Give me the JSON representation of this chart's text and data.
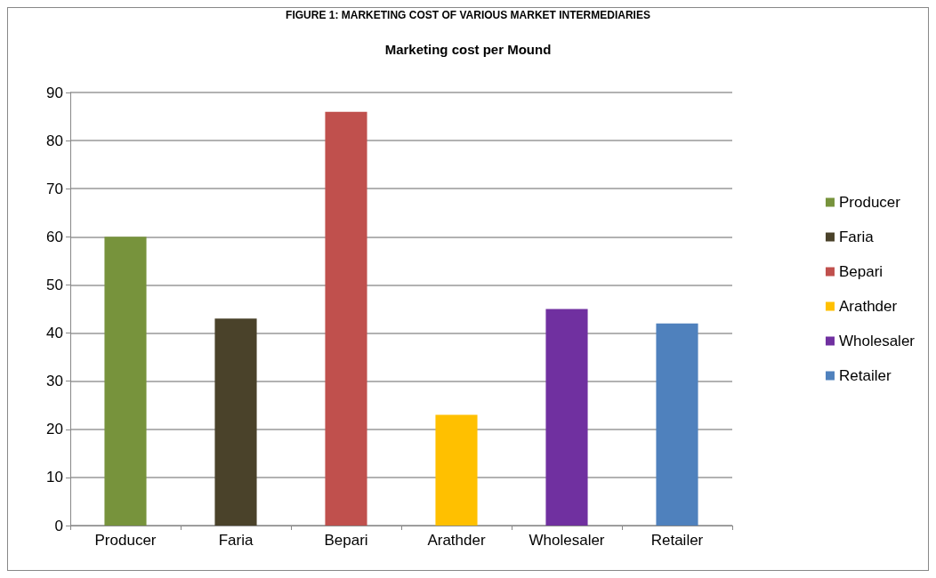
{
  "chart_data": {
    "type": "bar",
    "title": "Marketing cost per Mound",
    "annotations": [
      "FIGURE 1: MARKETING COST OF VARIOUS MARKET INTERMEDIARIES"
    ],
    "categories": [
      "Producer",
      "Faria",
      "Bepari",
      "Arathder",
      "Wholesaler",
      "Retailer"
    ],
    "series": [
      {
        "name": "Producer",
        "color": "#77933c",
        "values": [
          60,
          null,
          null,
          null,
          null,
          null
        ]
      },
      {
        "name": "Faria",
        "color": "#4a422a",
        "values": [
          null,
          43,
          null,
          null,
          null,
          null
        ]
      },
      {
        "name": "Bepari",
        "color": "#c0504d",
        "values": [
          null,
          null,
          86,
          null,
          null,
          null
        ]
      },
      {
        "name": "Arathder",
        "color": "#ffc000",
        "values": [
          null,
          null,
          null,
          23,
          null,
          null
        ]
      },
      {
        "name": "Wholesaler",
        "color": "#7030a0",
        "values": [
          null,
          null,
          null,
          null,
          45,
          null
        ]
      },
      {
        "name": "Retailer",
        "color": "#4f81bd",
        "values": [
          null,
          null,
          null,
          null,
          null,
          42
        ]
      }
    ],
    "stacked": true,
    "ylim": [
      0,
      90
    ],
    "yticks": [
      0,
      10,
      20,
      30,
      40,
      50,
      60,
      70,
      80,
      90
    ],
    "grid": true,
    "legend": "right"
  }
}
